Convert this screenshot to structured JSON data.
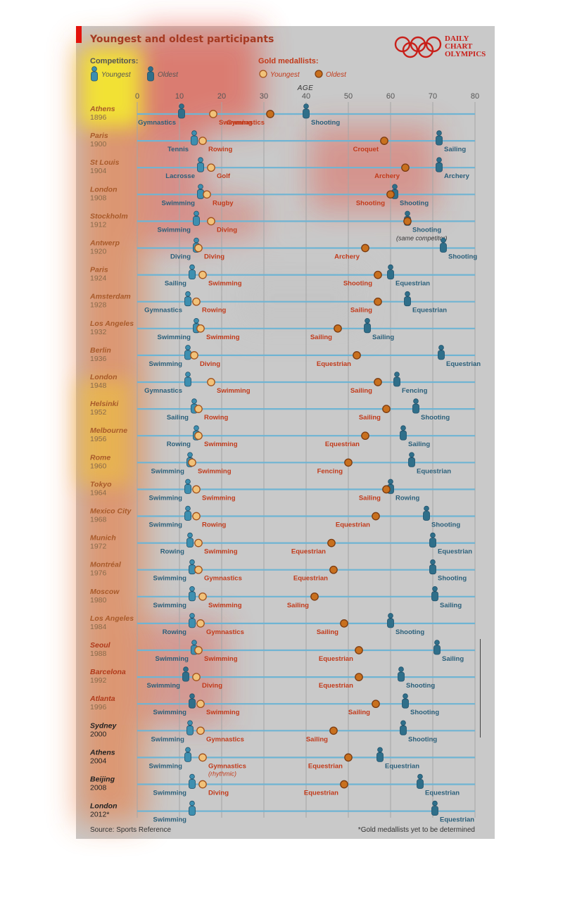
{
  "title": "Youngest and oldest participants",
  "brand": [
    "DAILY",
    "CHART",
    "OLYMPICS"
  ],
  "legend": {
    "competitors_label": "Competitors:",
    "competitors_youngest": "Youngest",
    "competitors_oldest": "Oldest",
    "gold_label": "Gold medallists:",
    "gold_youngest": "Youngest",
    "gold_oldest": "Oldest"
  },
  "source": "Source: Sports Reference",
  "footnote": "*Gold medallists yet to be determined",
  "colors": {
    "panel": "#c9c9c9",
    "competitor": "#3d8fb0",
    "competitor_dark": "#2f6f8a",
    "youngest_fill": "#f1c27a",
    "oldest_fill": "#c8701e",
    "gold_text": "#c23a1a",
    "row_line": "#6fb4d3",
    "title": "#a53a22"
  },
  "chart_data": {
    "type": "scatter",
    "xlabel": "AGE",
    "xlim": [
      0,
      80
    ],
    "xticks": [
      0,
      10,
      20,
      30,
      40,
      50,
      60,
      70,
      80
    ],
    "note": "(same competitor)",
    "rows": [
      {
        "city": "Athens",
        "year": "1896",
        "cy": 10.5,
        "cy_sport": "Gymnastics",
        "co": 40,
        "co_sport": "Shooting",
        "gy": 18,
        "gy_sport": "Swimming",
        "go": 31.5,
        "go_sport": "Gymnastics"
      },
      {
        "city": "Paris",
        "year": "1900",
        "cy": 13.5,
        "cy_sport": "Tennis",
        "co": 71.5,
        "co_sport": "Sailing",
        "gy": 15.5,
        "gy_sport": "Rowing",
        "go": 58.5,
        "go_sport": "Croquet"
      },
      {
        "city": "St Louis",
        "year": "1904",
        "cy": 15,
        "cy_sport": "Lacrosse",
        "co": 71.5,
        "co_sport": "Archery",
        "gy": 17.5,
        "gy_sport": "Golf",
        "go": 63.5,
        "go_sport": "Archery"
      },
      {
        "city": "London",
        "year": "1908",
        "cy": 15,
        "cy_sport": "Swimming",
        "co": 61,
        "co_sport": "Shooting",
        "gy": 16.5,
        "gy_sport": "Rugby",
        "go": 60,
        "go_sport": "Shooting"
      },
      {
        "city": "Stockholm",
        "year": "1912",
        "cy": 14,
        "cy_sport": "Swimming",
        "co": 64,
        "co_sport": "Shooting",
        "gy": 17.5,
        "gy_sport": "Diving",
        "go": 64,
        "go_sport": ""
      },
      {
        "city": "Antwerp",
        "year": "1920",
        "cy": 14,
        "cy_sport": "Diving",
        "co": 72.5,
        "co_sport": "Shooting",
        "gy": 14.5,
        "gy_sport": "Diving",
        "go": 54,
        "go_sport": "Archery"
      },
      {
        "city": "Paris",
        "year": "1924",
        "cy": 13,
        "cy_sport": "Sailing",
        "co": 60,
        "co_sport": "Equestrian",
        "gy": 15.5,
        "gy_sport": "Swimming",
        "go": 57,
        "go_sport": "Shooting"
      },
      {
        "city": "Amsterdam",
        "year": "1928",
        "cy": 12,
        "cy_sport": "Gymnastics",
        "co": 64,
        "co_sport": "Equestrian",
        "gy": 14,
        "gy_sport": "Rowing",
        "go": 57,
        "go_sport": "Sailing"
      },
      {
        "city": "Los Angeles",
        "year": "1932",
        "cy": 14,
        "cy_sport": "Swimming",
        "co": 54.5,
        "co_sport": "Sailing",
        "gy": 15,
        "gy_sport": "Swimming",
        "go": 47.5,
        "go_sport": "Sailing"
      },
      {
        "city": "Berlin",
        "year": "1936",
        "cy": 12,
        "cy_sport": "Swimming",
        "co": 72,
        "co_sport": "Equestrian",
        "gy": 13.5,
        "gy_sport": "Diving",
        "go": 52,
        "go_sport": "Equestrian"
      },
      {
        "city": "London",
        "year": "1948",
        "cy": 12,
        "cy_sport": "Gymnastics",
        "co": 61.5,
        "co_sport": "Fencing",
        "gy": 17.5,
        "gy_sport": "Swimming",
        "go": 57,
        "go_sport": "Sailing"
      },
      {
        "city": "Helsinki",
        "year": "1952",
        "cy": 13.5,
        "cy_sport": "Sailing",
        "co": 66,
        "co_sport": "Shooting",
        "gy": 14.5,
        "gy_sport": "Rowing",
        "go": 59,
        "go_sport": "Sailing"
      },
      {
        "city": "Melbourne",
        "year": "1956",
        "cy": 14,
        "cy_sport": "Rowing",
        "co": 63,
        "co_sport": "Sailing",
        "gy": 14.5,
        "gy_sport": "Swimming",
        "go": 54,
        "go_sport": "Equestrian"
      },
      {
        "city": "Rome",
        "year": "1960",
        "cy": 12.5,
        "cy_sport": "Swimming",
        "co": 65,
        "co_sport": "Equestrian",
        "gy": 13,
        "gy_sport": "Swimming",
        "go": 50,
        "go_sport": "Fencing"
      },
      {
        "city": "Tokyo",
        "year": "1964",
        "cy": 12,
        "cy_sport": "Swimming",
        "co": 60,
        "co_sport": "Rowing",
        "gy": 14,
        "gy_sport": "Swimming",
        "go": 59,
        "go_sport": "Sailing"
      },
      {
        "city": "Mexico City",
        "year": "1968",
        "cy": 12,
        "cy_sport": "Swimming",
        "co": 68.5,
        "co_sport": "Shooting",
        "gy": 14,
        "gy_sport": "Rowing",
        "go": 56.5,
        "go_sport": "Equestrian"
      },
      {
        "city": "Munich",
        "year": "1972",
        "cy": 12.5,
        "cy_sport": "Rowing",
        "co": 70,
        "co_sport": "Equestrian",
        "gy": 14.5,
        "gy_sport": "Swimming",
        "go": 46,
        "go_sport": "Equestrian"
      },
      {
        "city": "Montréal",
        "year": "1976",
        "cy": 13,
        "cy_sport": "Swimming",
        "co": 70,
        "co_sport": "Shooting",
        "gy": 14.5,
        "gy_sport": "Gymnastics",
        "go": 46.5,
        "go_sport": "Equestrian"
      },
      {
        "city": "Moscow",
        "year": "1980",
        "cy": 13,
        "cy_sport": "Swimming",
        "co": 70.5,
        "co_sport": "Sailing",
        "gy": 15.5,
        "gy_sport": "Swimming",
        "go": 42,
        "go_sport": "Sailing"
      },
      {
        "city": "Los Angeles",
        "year": "1984",
        "cy": 13,
        "cy_sport": "Rowing",
        "co": 60,
        "co_sport": "Shooting",
        "gy": 15,
        "gy_sport": "Gymnastics",
        "go": 49,
        "go_sport": "Sailing"
      },
      {
        "city": "Seoul",
        "year": "1988",
        "cy": 13.5,
        "cy_sport": "Swimming",
        "co": 71,
        "co_sport": "Sailing",
        "gy": 14.5,
        "gy_sport": "Swimming",
        "go": 52.5,
        "go_sport": "Equestrian"
      },
      {
        "city": "Barcelona",
        "year": "1992",
        "cy": 11.5,
        "cy_sport": "Swimming",
        "co": 62.5,
        "co_sport": "Shooting",
        "gy": 14,
        "gy_sport": "Diving",
        "go": 52.5,
        "go_sport": "Equestrian"
      },
      {
        "city": "Atlanta",
        "year": "1996",
        "cy": 13,
        "cy_sport": "Swimming",
        "co": 63.5,
        "co_sport": "Shooting",
        "gy": 15,
        "gy_sport": "Swimming",
        "go": 56.5,
        "go_sport": "Sailing"
      },
      {
        "city": "Sydney",
        "year": "2000",
        "cy": 12.5,
        "cy_sport": "Swimming",
        "co": 63,
        "co_sport": "Shooting",
        "gy": 15,
        "gy_sport": "Gymnastics",
        "go": 46.5,
        "go_sport": "Sailing"
      },
      {
        "city": "Athens",
        "year": "2004",
        "cy": 12,
        "cy_sport": "Swimming",
        "co": 57.5,
        "co_sport": "Equestrian",
        "gy": 15.5,
        "gy_sport": "Gymnastics",
        "gy_sport2": "(rhythmic)",
        "go": 50,
        "go_sport": "Equestrian"
      },
      {
        "city": "Beijing",
        "year": "2008",
        "cy": 13,
        "cy_sport": "Swimming",
        "co": 67,
        "co_sport": "Equestrian",
        "gy": 15.5,
        "gy_sport": "Diving",
        "go": 49,
        "go_sport": "Equestrian"
      },
      {
        "city": "London",
        "year": "2012*",
        "cy": 13,
        "cy_sport": "Swimming",
        "co": 70.5,
        "co_sport": "Equestrian",
        "gy": null,
        "gy_sport": "",
        "go": null,
        "go_sport": ""
      }
    ]
  }
}
